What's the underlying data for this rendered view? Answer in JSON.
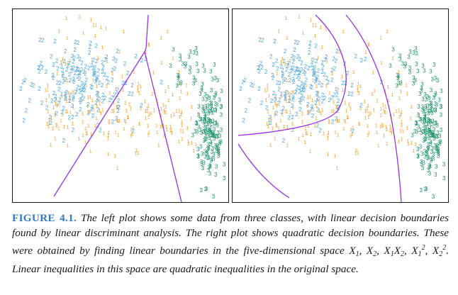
{
  "figure": {
    "label": "FIGURE 4.1.",
    "caption_part1": "The left plot shows some data from three classes, with linear decision boundaries found by linear discriminant analysis. The right plot shows quadratic decision boundaries. These were obtained by finding linear boundaries in the five-dimensional space ",
    "caption_math": "X1, X2, X1X2, X1^2, X2^2",
    "caption_part2": ". Linear inequalities in this space are quadratic inequalities in the original space.",
    "point_labels": [
      "1",
      "2",
      "3"
    ],
    "colors": {
      "class_1": "#f0a030",
      "class_2": "#4ba3d9",
      "class_3": "#1a9068",
      "boundary": "#9b30e0",
      "caption_label": "#2f7bbf"
    }
  },
  "chart_data": [
    {
      "type": "scatter",
      "panel": "left",
      "classes": [
        {
          "label": "1",
          "color": "#f0a030",
          "center": [
            0.45,
            0.55
          ],
          "spread": [
            0.42,
            0.4
          ],
          "count": 300
        },
        {
          "label": "2",
          "color": "#4ba3d9",
          "center": [
            0.3,
            0.4
          ],
          "spread": [
            0.22,
            0.22
          ],
          "count": 250
        },
        {
          "label": "3",
          "color": "#1a9068",
          "center": [
            0.9,
            0.65
          ],
          "spread": [
            0.05,
            0.3
          ],
          "count": 250
        }
      ],
      "boundaries": "linear",
      "axes": "none",
      "grid": false
    },
    {
      "type": "scatter",
      "panel": "right",
      "classes": [
        {
          "label": "1",
          "color": "#f0a030",
          "center": [
            0.45,
            0.55
          ],
          "spread": [
            0.42,
            0.4
          ],
          "count": 300
        },
        {
          "label": "2",
          "color": "#4ba3d9",
          "center": [
            0.3,
            0.4
          ],
          "spread": [
            0.22,
            0.22
          ],
          "count": 250
        },
        {
          "label": "3",
          "color": "#1a9068",
          "center": [
            0.9,
            0.65
          ],
          "spread": [
            0.05,
            0.3
          ],
          "count": 250
        }
      ],
      "boundaries": "quadratic",
      "axes": "none",
      "grid": false
    }
  ]
}
